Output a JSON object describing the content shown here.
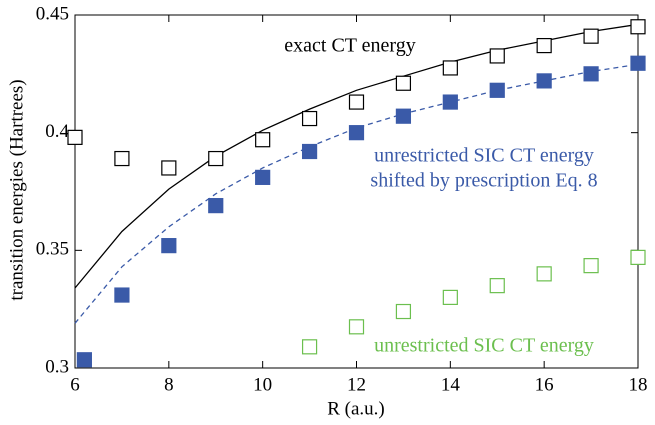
{
  "chart_data": {
    "type": "scatter",
    "xlabel": "R (a.u.)",
    "ylabel": "transition energies (Hartrees)",
    "xlim": [
      6,
      18
    ],
    "xticks": [
      6,
      8,
      10,
      12,
      14,
      16,
      18
    ],
    "ylim": [
      0.3,
      0.45
    ],
    "yticks": [
      0.3,
      0.35,
      0.4,
      0.45
    ],
    "annotations": [
      {
        "text": "exact CT energy",
        "color": "#000000"
      },
      {
        "text": "unrestricted SIC CT energy",
        "color": "#3a5aa8"
      },
      {
        "text": "shifted by prescription Eq. 8",
        "color": "#3a5aa8"
      },
      {
        "text": "unrestricted SIC CT energy",
        "color": "#6bbf4e"
      }
    ],
    "series": [
      {
        "style": "line",
        "color": "#000000",
        "x": [
          6,
          7,
          8,
          9,
          10,
          11,
          12,
          13,
          14,
          15,
          16,
          17,
          18
        ],
        "values": [
          0.334,
          0.358,
          0.376,
          0.39,
          0.401,
          0.41,
          0.418,
          0.424,
          0.43,
          0.435,
          0.439,
          0.443,
          0.446
        ]
      },
      {
        "style": "dashed",
        "color": "#3a5aa8",
        "x": [
          6,
          7,
          8,
          9,
          10,
          11,
          12,
          13,
          14,
          15,
          16,
          17,
          18
        ],
        "values": [
          0.319,
          0.343,
          0.36,
          0.374,
          0.385,
          0.394,
          0.402,
          0.408,
          0.413,
          0.418,
          0.422,
          0.426,
          0.429
        ]
      },
      {
        "style": "open-square",
        "color": "#000000",
        "x": [
          6,
          7,
          8,
          9,
          10,
          11,
          12,
          13,
          14,
          15,
          16,
          17,
          18
        ],
        "values": [
          0.398,
          0.389,
          0.385,
          0.389,
          0.397,
          0.406,
          0.413,
          0.421,
          0.4275,
          0.4326,
          0.437,
          0.441,
          0.445
        ]
      },
      {
        "style": "filled-square",
        "color": "#3a5aa8",
        "x": [
          6.2,
          7,
          8,
          9,
          10,
          11,
          12,
          13,
          14,
          15,
          16,
          17,
          18
        ],
        "values": [
          0.3035,
          0.331,
          0.352,
          0.369,
          0.381,
          0.392,
          0.4,
          0.407,
          0.413,
          0.418,
          0.422,
          0.425,
          0.4295
        ]
      },
      {
        "style": "open-square",
        "color": "#6bbf4e",
        "x": [
          11,
          12,
          13,
          14,
          15,
          16,
          17,
          18
        ],
        "values": [
          0.309,
          0.3175,
          0.324,
          0.33,
          0.335,
          0.34,
          0.3435,
          0.347
        ]
      }
    ]
  }
}
